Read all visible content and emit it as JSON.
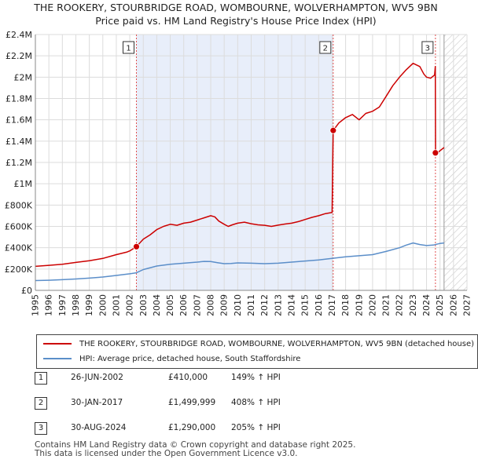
{
  "header": {
    "title": "THE ROOKERY, STOURBRIDGE ROAD, WOMBOURNE, WOLVERHAMPTON, WV5 9BN",
    "subtitle": "Price paid vs. HM Land Registry's House Price Index (HPI)"
  },
  "chart_data": {
    "type": "line",
    "title": "THE ROOKERY, STOURBRIDGE ROAD, WOMBOURNE, WOLVERHAMPTON, WV5 9BN",
    "subtitle": "Price paid vs. HM Land Registry's House Price Index (HPI)",
    "xlabel": "",
    "ylabel": "",
    "xlim": [
      1995,
      2027
    ],
    "ylim": [
      0,
      2400000
    ],
    "x_ticks": [
      1995,
      1996,
      1997,
      1998,
      1999,
      2000,
      2001,
      2002,
      2003,
      2004,
      2005,
      2006,
      2007,
      2008,
      2009,
      2010,
      2011,
      2012,
      2013,
      2014,
      2015,
      2016,
      2017,
      2018,
      2019,
      2020,
      2021,
      2022,
      2023,
      2024,
      2025,
      2026,
      2027
    ],
    "y_ticks": [
      {
        "value": 0,
        "label": "£0"
      },
      {
        "value": 200000,
        "label": "£200K"
      },
      {
        "value": 400000,
        "label": "£400K"
      },
      {
        "value": 600000,
        "label": "£600K"
      },
      {
        "value": 800000,
        "label": "£800K"
      },
      {
        "value": 1000000,
        "label": "£1M"
      },
      {
        "value": 1200000,
        "label": "£1.2M"
      },
      {
        "value": 1400000,
        "label": "£1.4M"
      },
      {
        "value": 1600000,
        "label": "£1.6M"
      },
      {
        "value": 1800000,
        "label": "£1.8M"
      },
      {
        "value": 2000000,
        "label": "£2M"
      },
      {
        "value": 2200000,
        "label": "£2.2M"
      },
      {
        "value": 2400000,
        "label": "£2.4M"
      }
    ],
    "grid": true,
    "highlight_range": [
      2002.49,
      2017.08
    ],
    "forecast_start": 2025.3,
    "series": [
      {
        "name": "THE ROOKERY, STOURBRIDGE ROAD, WOMBOURNE, WOLVERHAMPTON, WV5 9BN (detached house)",
        "color": "#cc0000",
        "x": [
          1995.0,
          1996.0,
          1997.0,
          1998.0,
          1999.0,
          2000.0,
          2001.0,
          2001.8,
          2002.0,
          2002.49,
          2003.0,
          2003.5,
          2004.0,
          2004.5,
          2005.0,
          2005.5,
          2006.0,
          2006.5,
          2007.0,
          2007.5,
          2008.0,
          2008.3,
          2008.6,
          2009.0,
          2009.3,
          2009.6,
          2010.0,
          2010.5,
          2011.0,
          2011.5,
          2012.0,
          2012.5,
          2013.0,
          2013.5,
          2014.0,
          2014.5,
          2015.0,
          2015.5,
          2016.0,
          2016.5,
          2017.0,
          2017.08,
          2017.5,
          2018.0,
          2018.5,
          2019.0,
          2019.5,
          2020.0,
          2020.5,
          2021.0,
          2021.5,
          2022.0,
          2022.5,
          2023.0,
          2023.5,
          2023.8,
          2024.0,
          2024.3,
          2024.6,
          2024.65,
          2024.67,
          2024.8,
          2025.0,
          2025.3
        ],
        "values": [
          225000,
          235000,
          245000,
          262000,
          278000,
          300000,
          335000,
          360000,
          370000,
          410000,
          480000,
          520000,
          570000,
          600000,
          620000,
          610000,
          630000,
          640000,
          660000,
          680000,
          700000,
          690000,
          650000,
          620000,
          600000,
          615000,
          630000,
          640000,
          625000,
          615000,
          610000,
          600000,
          612000,
          622000,
          630000,
          645000,
          665000,
          685000,
          700000,
          720000,
          730000,
          1499999,
          1570000,
          1620000,
          1650000,
          1600000,
          1660000,
          1680000,
          1720000,
          1820000,
          1920000,
          2000000,
          2070000,
          2130000,
          2100000,
          2030000,
          2000000,
          1990000,
          2020000,
          2100000,
          1300000,
          1290000,
          1310000,
          1340000
        ]
      },
      {
        "name": "HPI: Average price, detached house, South Staffordshire",
        "color": "#5b8ec9",
        "x": [
          1995.0,
          1996.0,
          1997.0,
          1998.0,
          1999.0,
          2000.0,
          2001.0,
          2002.0,
          2002.49,
          2003.0,
          2004.0,
          2005.0,
          2006.0,
          2007.0,
          2007.5,
          2008.0,
          2008.5,
          2009.0,
          2009.5,
          2010.0,
          2011.0,
          2012.0,
          2013.0,
          2014.0,
          2015.0,
          2016.0,
          2017.0,
          2018.0,
          2019.0,
          2020.0,
          2021.0,
          2022.0,
          2022.5,
          2023.0,
          2023.5,
          2024.0,
          2024.5,
          2025.0,
          2025.3
        ],
        "values": [
          92000,
          95000,
          100000,
          107000,
          115000,
          125000,
          140000,
          155000,
          165000,
          195000,
          228000,
          245000,
          255000,
          265000,
          272000,
          270000,
          260000,
          250000,
          252000,
          258000,
          255000,
          250000,
          255000,
          265000,
          275000,
          285000,
          300000,
          315000,
          325000,
          335000,
          365000,
          400000,
          425000,
          445000,
          430000,
          420000,
          425000,
          440000,
          445000
        ]
      }
    ],
    "sales": [
      {
        "label": "1",
        "x": 2002.49,
        "value": 410000
      },
      {
        "label": "2",
        "x": 2017.08,
        "value": 1499999
      },
      {
        "label": "3",
        "x": 2024.66,
        "value": 1290000
      }
    ],
    "legend": "below"
  },
  "legend": {
    "items": [
      {
        "label": "THE ROOKERY, STOURBRIDGE ROAD, WOMBOURNE, WOLVERHAMPTON, WV5 9BN (detached house)",
        "color": "#cc0000"
      },
      {
        "label": "HPI: Average price, detached house, South Staffordshire",
        "color": "#5b8ec9"
      }
    ]
  },
  "sales_table": {
    "rows": [
      {
        "num": "1",
        "date": "26-JUN-2002",
        "price": "£410,000",
        "hpi": "149% ↑ HPI"
      },
      {
        "num": "2",
        "date": "30-JAN-2017",
        "price": "£1,499,999",
        "hpi": "408% ↑ HPI"
      },
      {
        "num": "3",
        "date": "30-AUG-2024",
        "price": "£1,290,000",
        "hpi": "205% ↑ HPI"
      }
    ]
  },
  "footer": {
    "line1": "Contains HM Land Registry data © Crown copyright and database right 2025.",
    "line2": "This data is licensed under the Open Government Licence v3.0."
  }
}
